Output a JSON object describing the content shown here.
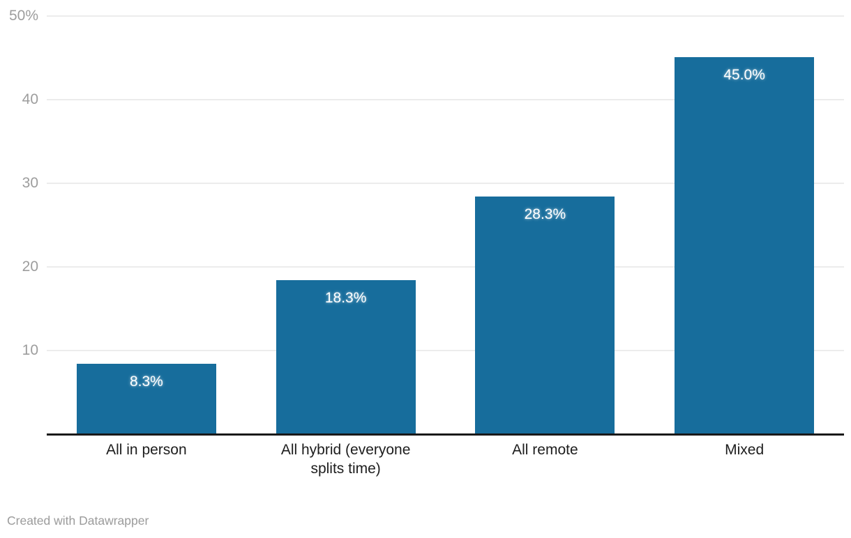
{
  "chart_data": {
    "type": "bar",
    "title": "",
    "xlabel": "",
    "ylabel": "",
    "categories": [
      "All in person",
      "All hybrid (everyone splits time)",
      "All remote",
      "Mixed"
    ],
    "values": [
      8.3,
      18.3,
      28.3,
      45.0
    ],
    "value_labels": [
      "8.3%",
      "18.3%",
      "28.3%",
      "45.0%"
    ],
    "ylim": [
      0,
      50
    ],
    "yticks": [
      {
        "value": 10,
        "label": "10"
      },
      {
        "value": 20,
        "label": "20"
      },
      {
        "value": 30,
        "label": "30"
      },
      {
        "value": 40,
        "label": "40"
      },
      {
        "value": 50,
        "label": "50%"
      }
    ],
    "grid": true,
    "legend": "none",
    "bar_color": "#176d9c",
    "value_label_color": "#ffffff",
    "tick_label_color": "#9d9d9d",
    "category_label_color": "#1d1d1d",
    "axis_line_color": "#191919"
  },
  "footer": {
    "attribution": "Created with Datawrapper"
  }
}
